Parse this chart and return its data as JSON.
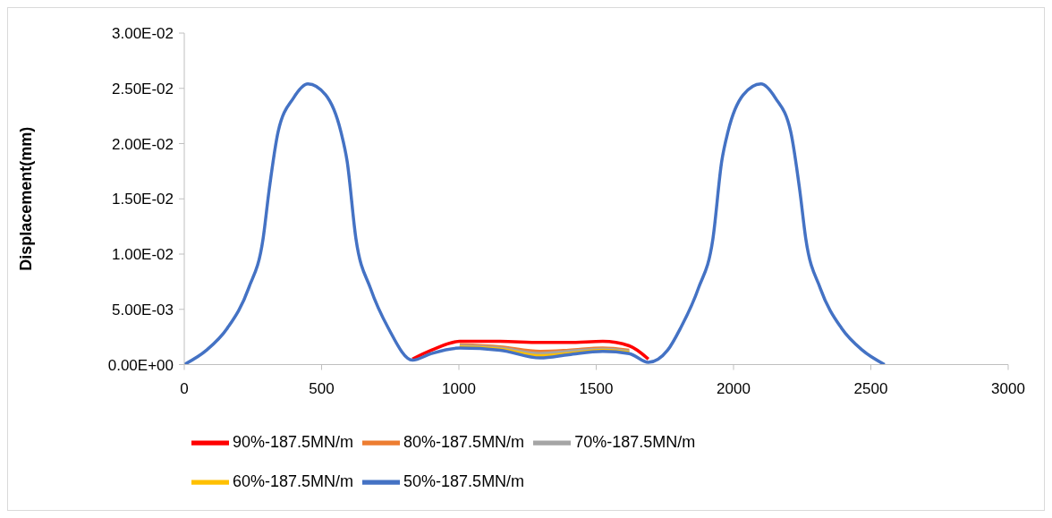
{
  "chart_data": {
    "type": "line",
    "ylabel": "Displacement(mm)",
    "x": [
      0,
      81,
      157,
      234,
      287,
      309,
      342,
      397,
      450,
      515,
      570,
      593,
      625,
      678,
      743,
      831,
      900,
      1003,
      1150,
      1296,
      1400,
      1524,
      1620,
      1690,
      1760,
      1807,
      1872,
      1925,
      1957,
      1980,
      2035,
      2100,
      2153,
      2208,
      2241,
      2263,
      2316,
      2393,
      2469,
      2550
    ],
    "series": [
      {
        "name": "90%-187.5MN/m",
        "color": "#ff0000",
        "values": [
          null,
          null,
          null,
          null,
          null,
          null,
          null,
          null,
          null,
          null,
          null,
          null,
          null,
          null,
          null,
          0.0005,
          0.0013,
          0.0021,
          0.0021,
          0.002,
          0.002,
          0.0021,
          0.0017,
          0.0005,
          null,
          null,
          null,
          null,
          null,
          null,
          null,
          null,
          null,
          null,
          null,
          null,
          null,
          null,
          null,
          null
        ]
      },
      {
        "name": "80%-187.5MN/m",
        "color": "#ed7d31",
        "values": [
          null,
          null,
          null,
          null,
          null,
          null,
          null,
          null,
          null,
          null,
          null,
          null,
          null,
          null,
          null,
          null,
          null,
          0.0018,
          0.0016,
          0.0012,
          0.0013,
          0.0015,
          0.0013,
          null,
          null,
          null,
          null,
          null,
          null,
          null,
          null,
          null,
          null,
          null,
          null,
          null,
          null,
          null,
          null,
          null
        ]
      },
      {
        "name": "70%-187.5MN/m",
        "color": "#a5a5a5",
        "values": [
          null,
          null,
          null,
          null,
          null,
          null,
          null,
          null,
          null,
          null,
          null,
          null,
          null,
          null,
          null,
          null,
          null,
          0.0017,
          0.0015,
          0.001,
          0.0012,
          0.0014,
          0.0012,
          null,
          null,
          null,
          null,
          null,
          null,
          null,
          null,
          null,
          null,
          null,
          null,
          null,
          null,
          null,
          null,
          null
        ]
      },
      {
        "name": "60%-187.5MN/m",
        "color": "#ffc000",
        "values": [
          null,
          null,
          null,
          null,
          null,
          null,
          null,
          null,
          null,
          null,
          null,
          null,
          null,
          null,
          null,
          null,
          null,
          0.0016,
          0.0014,
          0.0008,
          0.001,
          0.0013,
          0.0011,
          null,
          null,
          null,
          null,
          null,
          null,
          null,
          null,
          null,
          null,
          null,
          null,
          null,
          null,
          null,
          null,
          null
        ]
      },
      {
        "name": "50%-187.5MN/m",
        "color": "#4472c4",
        "values": [
          0,
          0.0013,
          0.0033,
          0.0069,
          0.0114,
          0.0158,
          0.0211,
          0.0241,
          0.0254,
          0.0244,
          0.0211,
          0.0184,
          0.0114,
          0.0069,
          0.0033,
          0.0004,
          0.001,
          0.0015,
          0.0013,
          0.0006,
          0.0009,
          0.0012,
          0.001,
          0.0002,
          0.0013,
          0.0033,
          0.0069,
          0.0114,
          0.0184,
          0.0211,
          0.0244,
          0.0254,
          0.0241,
          0.0211,
          0.0158,
          0.0114,
          0.0069,
          0.0033,
          0.0013,
          0
        ]
      }
    ],
    "xlim": [
      0,
      3000
    ],
    "xticks": [
      0,
      500,
      1000,
      1500,
      2000,
      2500,
      3000
    ],
    "ylim": [
      0,
      0.03
    ],
    "yticks": [
      {
        "value": 0,
        "label": "0.00E+00"
      },
      {
        "value": 0.005,
        "label": "5.00E-03"
      },
      {
        "value": 0.01,
        "label": "1.00E-02"
      },
      {
        "value": 0.015,
        "label": "1.50E-02"
      },
      {
        "value": 0.02,
        "label": "2.00E-02"
      },
      {
        "value": 0.025,
        "label": "2.50E-02"
      },
      {
        "value": 0.03,
        "label": "3.00E-02"
      }
    ],
    "grid": false,
    "legend": "bottom",
    "marker": "none",
    "line_style": "solid"
  }
}
